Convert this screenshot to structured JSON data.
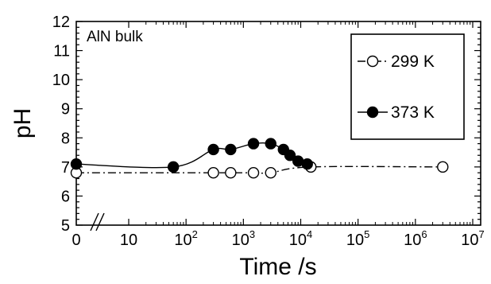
{
  "chart_data": {
    "type": "line",
    "annotation": "AlN bulk",
    "xlabel": "Time /s",
    "ylabel": "pH",
    "x_scale": "log with broken origin (0 and 10 separated by axis break)",
    "xlim": [
      0,
      10000000
    ],
    "ylim": [
      5,
      12
    ],
    "x_ticks": [
      {
        "value": 0,
        "base": "0",
        "exp": ""
      },
      {
        "value": 10,
        "base": "10",
        "exp": ""
      },
      {
        "value": 100,
        "base": "10",
        "exp": "2"
      },
      {
        "value": 1000,
        "base": "10",
        "exp": "3"
      },
      {
        "value": 10000,
        "base": "10",
        "exp": "4"
      },
      {
        "value": 100000,
        "base": "10",
        "exp": "5"
      },
      {
        "value": 1000000,
        "base": "10",
        "exp": "6"
      },
      {
        "value": 10000000,
        "base": "10",
        "exp": "7"
      }
    ],
    "y_ticks": [
      "5",
      "6",
      "7",
      "8",
      "9",
      "10",
      "11",
      "12"
    ],
    "legend_position": "top-right",
    "grid": false,
    "series": [
      {
        "name": "299 K",
        "marker": "open-circle",
        "line_style": "dash-dot",
        "color": "#000000",
        "points": [
          {
            "x": 0,
            "y": 6.8
          },
          {
            "x": 300,
            "y": 6.8
          },
          {
            "x": 600,
            "y": 6.8
          },
          {
            "x": 1500,
            "y": 6.8
          },
          {
            "x": 3000,
            "y": 6.8
          },
          {
            "x": 15000,
            "y": 7.0
          },
          {
            "x": 3000000,
            "y": 7.0
          }
        ]
      },
      {
        "name": "373 K",
        "marker": "filled-circle",
        "line_style": "solid",
        "color": "#000000",
        "points": [
          {
            "x": 0,
            "y": 7.1
          },
          {
            "x": 60,
            "y": 7.0
          },
          {
            "x": 300,
            "y": 7.6
          },
          {
            "x": 600,
            "y": 7.6
          },
          {
            "x": 1500,
            "y": 7.8
          },
          {
            "x": 3000,
            "y": 7.8
          },
          {
            "x": 5000,
            "y": 7.6
          },
          {
            "x": 6500,
            "y": 7.4
          },
          {
            "x": 9000,
            "y": 7.2
          },
          {
            "x": 13000,
            "y": 7.1
          }
        ]
      }
    ]
  }
}
